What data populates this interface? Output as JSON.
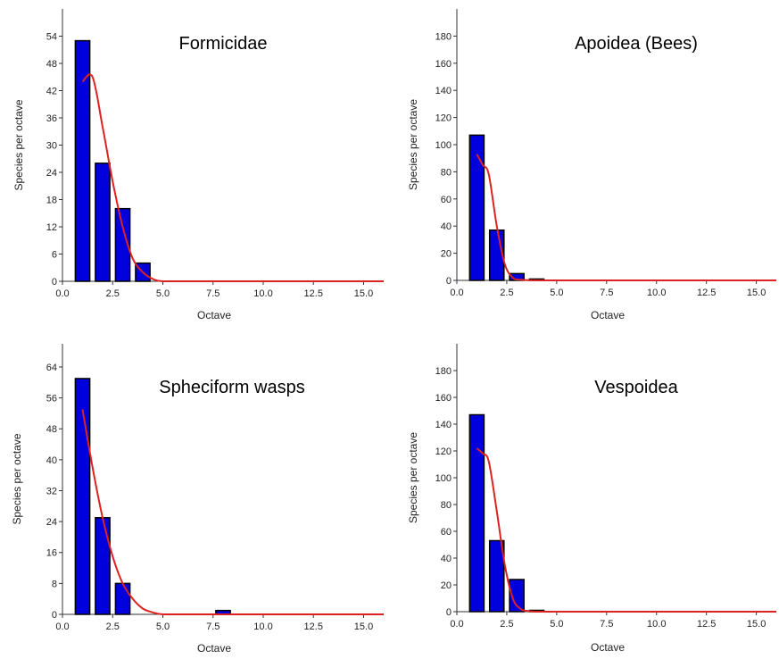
{
  "chart_data": [
    {
      "type": "bar",
      "title": "Formicidae",
      "xlabel": "Octave",
      "ylabel": "Species per octave",
      "xlim": [
        0,
        16
      ],
      "ylim": [
        0,
        60
      ],
      "xticks": [
        0.0,
        2.5,
        5.0,
        7.5,
        10.0,
        12.5,
        15.0
      ],
      "yticks": [
        0,
        6,
        12,
        18,
        24,
        30,
        36,
        42,
        48,
        54
      ],
      "bar_colors": {
        "fill": "#0000dd",
        "stroke": "#000000"
      },
      "fit_color": "#dd2222",
      "bars": {
        "x": [
          1,
          2,
          3,
          4
        ],
        "values": [
          53,
          26,
          16,
          4
        ]
      },
      "fit": {
        "x": [
          1.0,
          1.5,
          2.0,
          2.5,
          3.0,
          3.5,
          4.0,
          4.5,
          5.0,
          6,
          8,
          10,
          12,
          14,
          16
        ],
        "y": [
          44,
          45,
          34,
          22,
          12,
          5,
          2,
          0.5,
          0,
          0,
          0,
          0,
          0,
          0,
          0
        ]
      }
    },
    {
      "type": "bar",
      "title": "Apoidea (Bees)",
      "xlabel": "Octave",
      "ylabel": "Species per octave",
      "xlim": [
        0,
        16
      ],
      "ylim": [
        0,
        200
      ],
      "xticks": [
        0.0,
        2.5,
        5.0,
        7.5,
        10.0,
        12.5,
        15.0
      ],
      "yticks": [
        0,
        20,
        40,
        60,
        80,
        100,
        120,
        140,
        160,
        180
      ],
      "bar_colors": {
        "fill": "#0000dd",
        "stroke": "#000000"
      },
      "fit_color": "#dd2222",
      "bars": {
        "x": [
          1,
          2,
          3,
          4
        ],
        "values": [
          107,
          37,
          5,
          1
        ]
      },
      "fit": {
        "x": [
          1.0,
          1.3,
          1.6,
          2.0,
          2.4,
          2.8,
          3.2,
          4,
          6,
          8,
          10,
          12,
          14,
          16
        ],
        "y": [
          93,
          85,
          78,
          40,
          12,
          2,
          0.5,
          0,
          0,
          0,
          0,
          0,
          0,
          0
        ]
      }
    },
    {
      "type": "bar",
      "title": "Spheciform wasps",
      "xlabel": "Octave",
      "ylabel": "Species per octave",
      "xlim": [
        0,
        16
      ],
      "ylim": [
        0,
        70
      ],
      "xticks": [
        0.0,
        2.5,
        5.0,
        7.5,
        10.0,
        12.5,
        15.0
      ],
      "yticks": [
        0,
        8,
        16,
        24,
        32,
        40,
        48,
        56,
        64
      ],
      "bar_colors": {
        "fill": "#0000dd",
        "stroke": "#000000"
      },
      "fit_color": "#dd2222",
      "bars": {
        "x": [
          1,
          2,
          3,
          8
        ],
        "values": [
          61,
          25,
          8,
          1
        ]
      },
      "fit": {
        "x": [
          1.0,
          1.5,
          2.0,
          2.5,
          3.0,
          3.5,
          4.0,
          4.5,
          5.0,
          6,
          8,
          10,
          12,
          14,
          16
        ],
        "y": [
          53,
          38,
          25,
          15,
          8,
          4,
          1.5,
          0.5,
          0,
          0,
          0,
          0,
          0,
          0,
          0
        ]
      }
    },
    {
      "type": "bar",
      "title": "Vespoidea",
      "xlabel": "Octave",
      "ylabel": "Species per octave",
      "xlim": [
        0,
        16
      ],
      "ylim": [
        0,
        200
      ],
      "xticks": [
        0.0,
        2.5,
        5.0,
        7.5,
        10.0,
        12.5,
        15.0
      ],
      "yticks": [
        0,
        20,
        40,
        60,
        80,
        100,
        120,
        140,
        160,
        180
      ],
      "bar_colors": {
        "fill": "#0000dd",
        "stroke": "#000000"
      },
      "fit_color": "#dd2222",
      "bars": {
        "x": [
          1,
          2,
          3,
          4
        ],
        "values": [
          147,
          53,
          24,
          1
        ]
      },
      "fit": {
        "x": [
          1.0,
          1.3,
          1.6,
          2.0,
          2.4,
          2.8,
          3.2,
          3.6,
          4,
          6,
          8,
          10,
          12,
          14,
          16
        ],
        "y": [
          122,
          118,
          112,
          75,
          35,
          10,
          2,
          0.5,
          0,
          0,
          0,
          0,
          0,
          0,
          0
        ]
      }
    }
  ]
}
